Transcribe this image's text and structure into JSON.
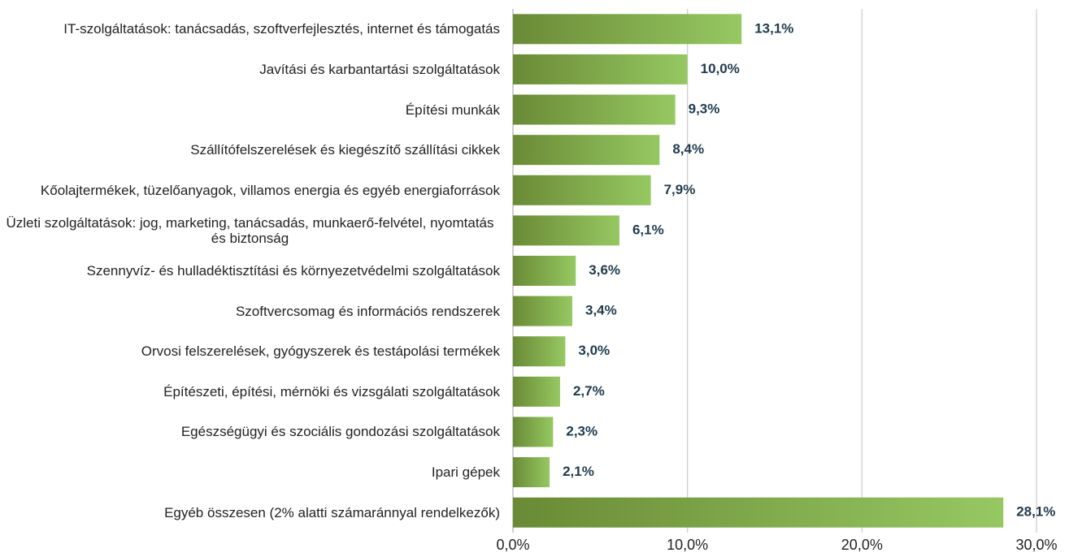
{
  "chart_data": {
    "type": "hbar",
    "categories": [
      "IT-szolgáltatások: tanácsadás, szoftverfejlesztés, internet és támogatás",
      "Javítási és karbantartási szolgáltatások",
      "Építési munkák",
      "Szállítófelszerelések és kiegészítő szállítási cikkek",
      "Kőolajtermékek, tüzelőanyagok, villamos energia és egyéb energiaforrások",
      "Üzleti szolgáltatások: jog, marketing, tanácsadás, munkaerő-felvétel, nyomtatás és biztonság",
      "Szennyvíz- és hulladéktisztítási és környezetvédelmi szolgáltatások",
      "Szoftvercsomag és információs rendszerek",
      "Orvosi felszerelések, gyógyszerek és testápolási termékek",
      "Építészeti, építési, mérnöki és vizsgálati szolgáltatások",
      "Egészségügyi és szociális gondozási szolgáltatások",
      "Ipari gépek",
      "Egyéb összesen (2% alatti számaránnyal rendelkezők)"
    ],
    "values": [
      13.1,
      10.0,
      9.3,
      8.4,
      7.9,
      6.1,
      3.6,
      3.4,
      3.0,
      2.7,
      2.3,
      2.1,
      28.1
    ],
    "value_labels": [
      "13,1%",
      "10,0%",
      "9,3%",
      "8,4%",
      "7,9%",
      "6,1%",
      "3,6%",
      "3,4%",
      "3,0%",
      "2,7%",
      "2,3%",
      "2,1%",
      "28,1%"
    ],
    "gradient": [
      "#6a8a35",
      "#96c862"
    ],
    "xlim": [
      0,
      30
    ],
    "xticks": [
      {
        "value": 0,
        "label": "0,0%"
      },
      {
        "value": 10,
        "label": "10,0%"
      },
      {
        "value": 20,
        "label": "20,0%"
      },
      {
        "value": 30,
        "label": "30,0%"
      }
    ],
    "grid": true
  }
}
